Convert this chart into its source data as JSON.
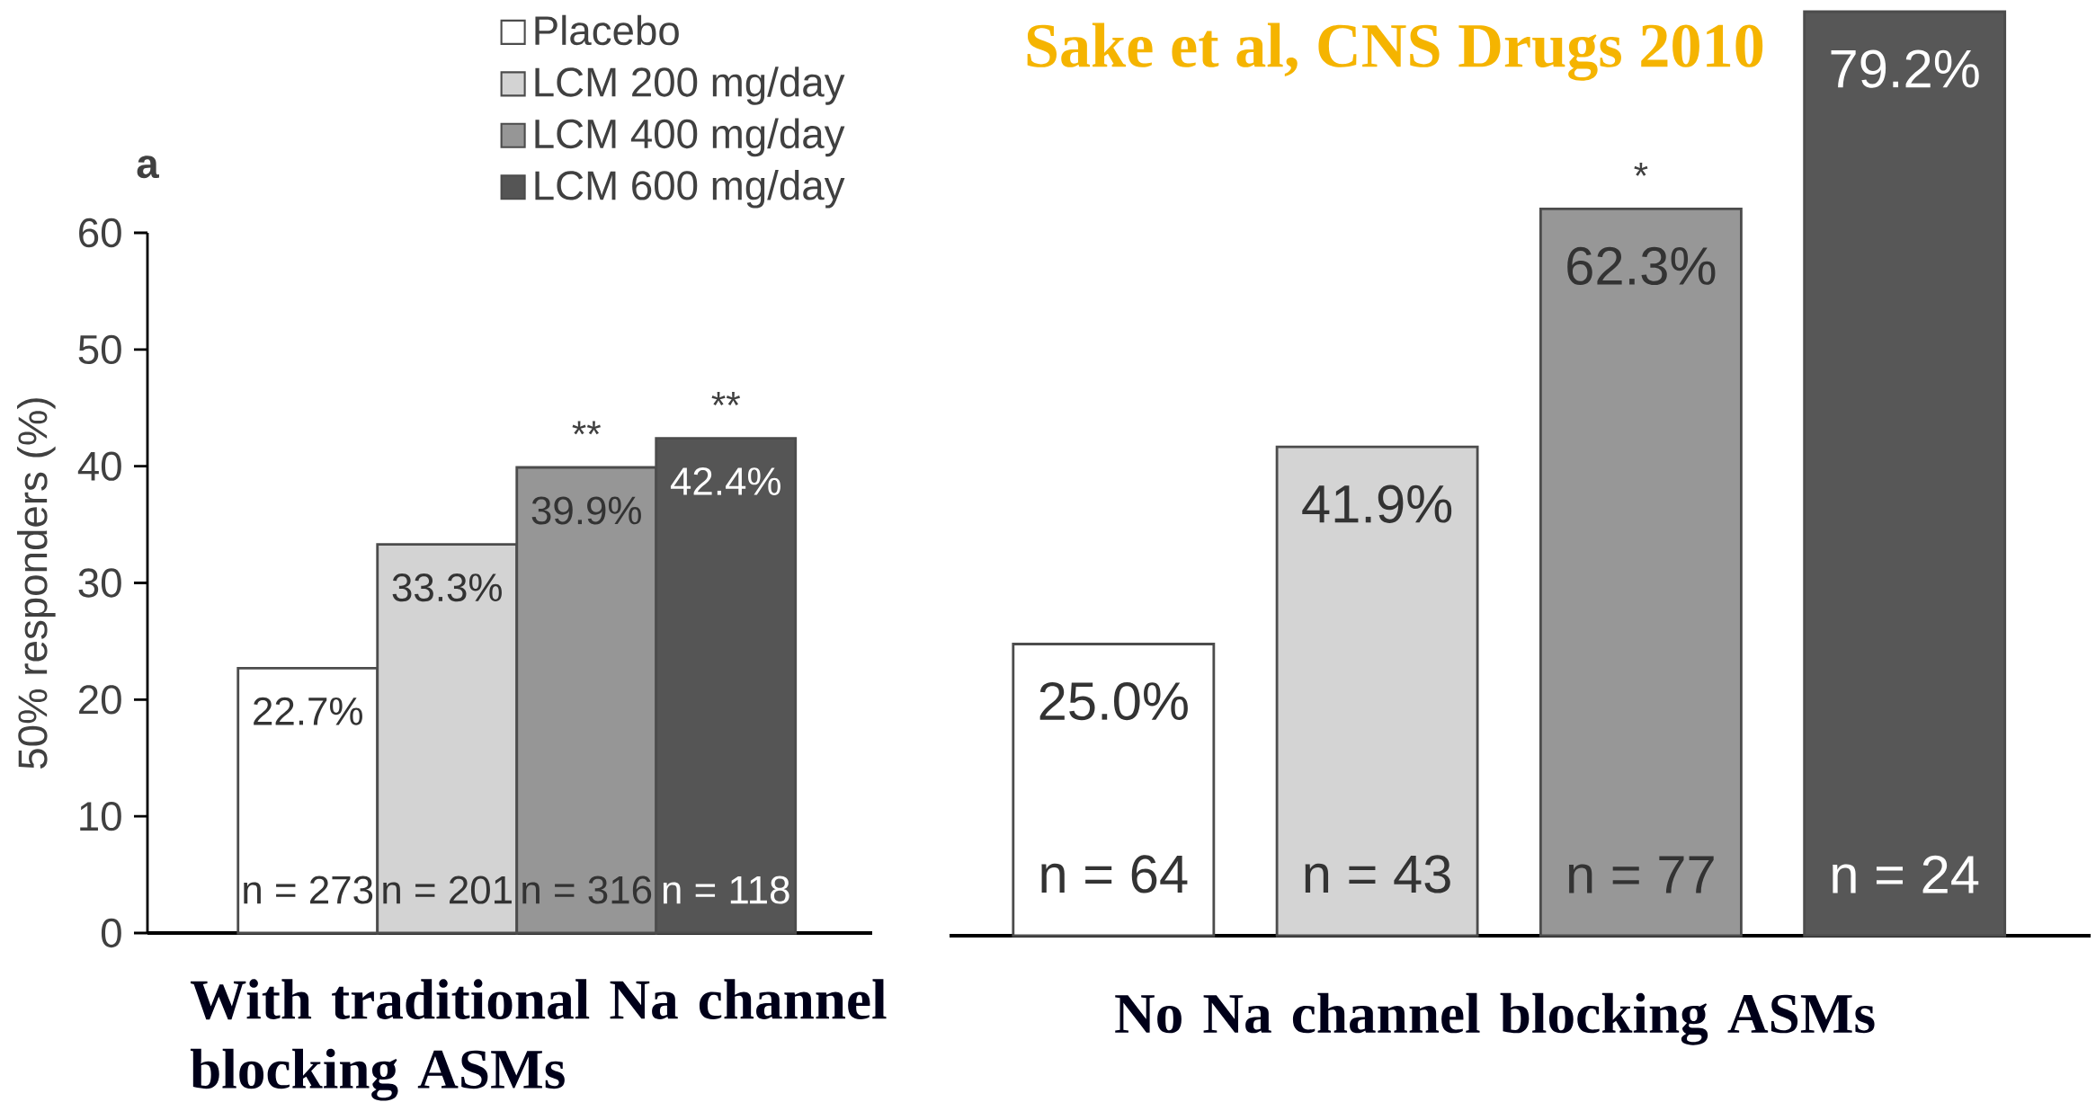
{
  "chart_data": [
    {
      "type": "bar",
      "title": "a",
      "xlabel": "With traditional Na channel blocking ASMs",
      "ylabel": "50% responders (%)",
      "categories": [
        null
      ],
      "series": [
        {
          "name": "Placebo",
          "color": "#ffffff",
          "values": [
            22.7
          ],
          "value_labels": [
            "22.7%"
          ]
        },
        {
          "name": "LCM 200 mg/day",
          "color": "#d3d3d3",
          "values": [
            33.3
          ],
          "value_labels": [
            "33.3%"
          ]
        },
        {
          "name": "LCM 400 mg/day",
          "color": "#969696",
          "values": [
            39.9
          ],
          "value_labels": [
            "39.9%"
          ]
        },
        {
          "name": "LCM 600 mg/day",
          "color": "#555555",
          "values": [
            42.4
          ],
          "value_labels": [
            "42.4%"
          ]
        }
      ],
      "ylim": [
        0,
        60
      ],
      "yticks": [
        0,
        10,
        20,
        30,
        40,
        50,
        60
      ],
      "legend": "top right",
      "tick_labels": "y",
      "annotations": [
        "n = 273",
        "n = 201",
        "n = 316",
        "n = 118",
        {
          "text": "**",
          "y": 39.9
        },
        {
          "text": "**",
          "y": 42.4
        }
      ]
    },
    {
      "type": "bar",
      "xlabel": "No Na channel blocking ASMs",
      "categories": [
        null
      ],
      "series": [
        {
          "color": "#ffffff",
          "values": [
            25.0
          ],
          "value_labels": [
            "25.0%"
          ]
        },
        {
          "color": "#d4d4d4",
          "values": [
            41.9
          ],
          "value_labels": [
            "41.9%"
          ]
        },
        {
          "color": "#979797",
          "values": [
            62.3
          ],
          "value_labels": [
            "62.3%"
          ]
        },
        {
          "color": "#575757",
          "values": [
            79.2
          ],
          "value_labels": [
            "79.2%"
          ]
        }
      ],
      "tick_labels": false,
      "annotations": [
        "n = 64",
        "n = 43",
        "n = 77",
        "n = 24",
        {
          "text": "*",
          "y": 62.3
        },
        "Sake et al, CNS Drugs 2010"
      ]
    }
  ]
}
